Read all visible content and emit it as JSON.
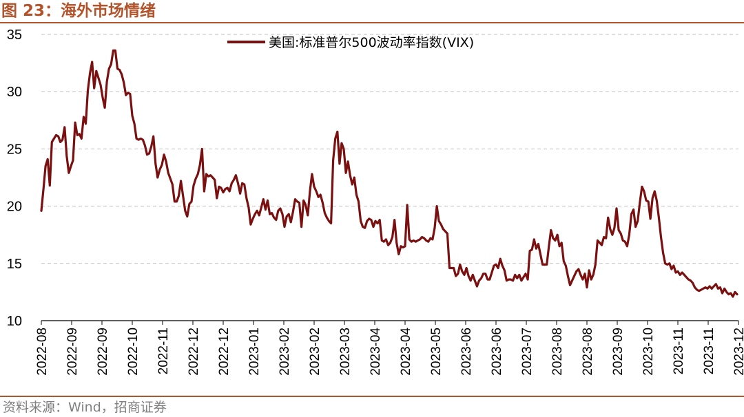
{
  "header": {
    "title": "图 23：海外市场情绪"
  },
  "footer": {
    "source": "资料来源：Wind，招商证券"
  },
  "colors": {
    "accent": "#b2532b",
    "series": "#7b1010",
    "grid": "#bfbfbf"
  },
  "chart_data": {
    "type": "line",
    "title": "",
    "xlabel": "",
    "ylabel": "",
    "ylim": [
      10,
      35
    ],
    "y_ticks": [
      10,
      15,
      20,
      25,
      30,
      35
    ],
    "grid": "horizontal dashed",
    "legend_position": "top-center",
    "x_tick_labels": [
      "2022-08",
      "2022-09",
      "2022-09",
      "2022-10",
      "2022-11",
      "2022-12",
      "2022-12",
      "2023-01",
      "2023-02",
      "2023-02",
      "2023-03",
      "2023-04",
      "2023-04",
      "2023-05",
      "2023-06",
      "2023-06",
      "2023-07",
      "2023-08",
      "2023-08",
      "2023-09",
      "2023-10",
      "2023-11",
      "2023-11",
      "2023-12"
    ],
    "series": [
      {
        "name": "美国:标准普尔500波动率指数(VIX)",
        "values": [
          19.6,
          21.5,
          23.5,
          24.1,
          21.8,
          25.6,
          25.9,
          26.2,
          26.1,
          25.6,
          25.8,
          26.9,
          24.4,
          22.9,
          23.5,
          24.0,
          27.3,
          26.2,
          26.3,
          25.9,
          27.8,
          27.2,
          30.1,
          31.6,
          32.6,
          30.3,
          31.8,
          31.2,
          30.6,
          29.5,
          28.6,
          30.9,
          32.0,
          32.4,
          33.6,
          33.6,
          32.0,
          31.9,
          31.5,
          30.8,
          29.7,
          29.9,
          29.8,
          27.9,
          27.2,
          25.9,
          25.8,
          25.9,
          25.8,
          25.3,
          24.5,
          24.6,
          25.2,
          26.1,
          23.7,
          22.5,
          23.2,
          23.6,
          24.5,
          23.9,
          22.9,
          22.4,
          21.9,
          20.4,
          20.4,
          20.9,
          22.2,
          20.9,
          19.6,
          19.1,
          20.2,
          20.4,
          21.8,
          22.4,
          22.8,
          23.6,
          25.0,
          21.3,
          22.8,
          22.6,
          22.7,
          22.5,
          22.3,
          20.7,
          21.7,
          21.6,
          21.2,
          21.5,
          21.6,
          21.3,
          22.0,
          22.3,
          22.7,
          22.0,
          21.1,
          22.0,
          21.9,
          20.7,
          19.9,
          18.4,
          18.9,
          19.3,
          19.6,
          19.2,
          19.9,
          20.6,
          19.7,
          20.5,
          19.3,
          19.4,
          19.0,
          18.8,
          19.6,
          19.8,
          19.3,
          18.2,
          19.1,
          19.3,
          18.6,
          19.5,
          20.6,
          20.4,
          20.3,
          18.2,
          20.5,
          20.1,
          19.2,
          21.3,
          22.8,
          21.7,
          21.3,
          20.8,
          21.0,
          20.3,
          19.4,
          19.0,
          18.7,
          18.5,
          24.0,
          25.9,
          26.5,
          23.7,
          25.5,
          25.0,
          22.9,
          23.9,
          22.7,
          21.9,
          22.5,
          21.0,
          20.4,
          18.7,
          18.2,
          18.1,
          18.7,
          18.9,
          18.8,
          18.2,
          18.7,
          18.5,
          18.8,
          17.0,
          16.9,
          17.1,
          16.6,
          16.8,
          17.3,
          18.8,
          16.8,
          15.8,
          16.5,
          16.4,
          16.5,
          20.1,
          17.1,
          16.9,
          17.0,
          16.9,
          17.0,
          17.1,
          17.3,
          17.2,
          17.0,
          16.9,
          17.2,
          17.1,
          18.1,
          20.0,
          18.7,
          18.4,
          18.0,
          17.8,
          17.6,
          14.6,
          14.6,
          14.6,
          13.9,
          14.1,
          14.9,
          14.3,
          14.0,
          14.6,
          13.9,
          13.5,
          14.0,
          13.5,
          13.0,
          13.5,
          13.7,
          14.1,
          14.1,
          13.6,
          13.6,
          14.2,
          14.8,
          14.9,
          14.6,
          15.4,
          14.8,
          14.4,
          13.5,
          13.6,
          13.6,
          13.5,
          14.0,
          13.7,
          14.0,
          13.5,
          13.8,
          14.1,
          13.6,
          16.1,
          16.2,
          17.1,
          16.3,
          16.7,
          15.8,
          14.9,
          14.9,
          14.9,
          16.5,
          17.9,
          17.2,
          17.0,
          17.5,
          16.5,
          16.8,
          15.2,
          14.8,
          13.9,
          13.1,
          13.5,
          13.9,
          14.3,
          14.5,
          14.0,
          13.6,
          14.1,
          12.9,
          14.4,
          13.6,
          14.0,
          14.9,
          17.0,
          16.8,
          16.6,
          17.3,
          17.2,
          19.0,
          18.0,
          17.5,
          18.1,
          19.8,
          17.9,
          17.6,
          17.0,
          16.9,
          16.5,
          17.5,
          19.3,
          19.7,
          18.2,
          18.7,
          20.3,
          21.7,
          21.3,
          20.5,
          20.4,
          18.9,
          20.7,
          21.3,
          20.5,
          19.0,
          17.3,
          15.9,
          15.0,
          14.9,
          15.0,
          14.5,
          14.8,
          14.2,
          14.3,
          14.0,
          14.2,
          14.0,
          13.8,
          13.6,
          13.5,
          13.3,
          12.9,
          12.7,
          12.6,
          12.7,
          12.8,
          12.9,
          12.8,
          13.0,
          12.8,
          13.0,
          13.2,
          12.8,
          12.9,
          12.4,
          12.8,
          12.5,
          12.3,
          12.4,
          12.1,
          12.5,
          12.3
        ]
      }
    ]
  }
}
